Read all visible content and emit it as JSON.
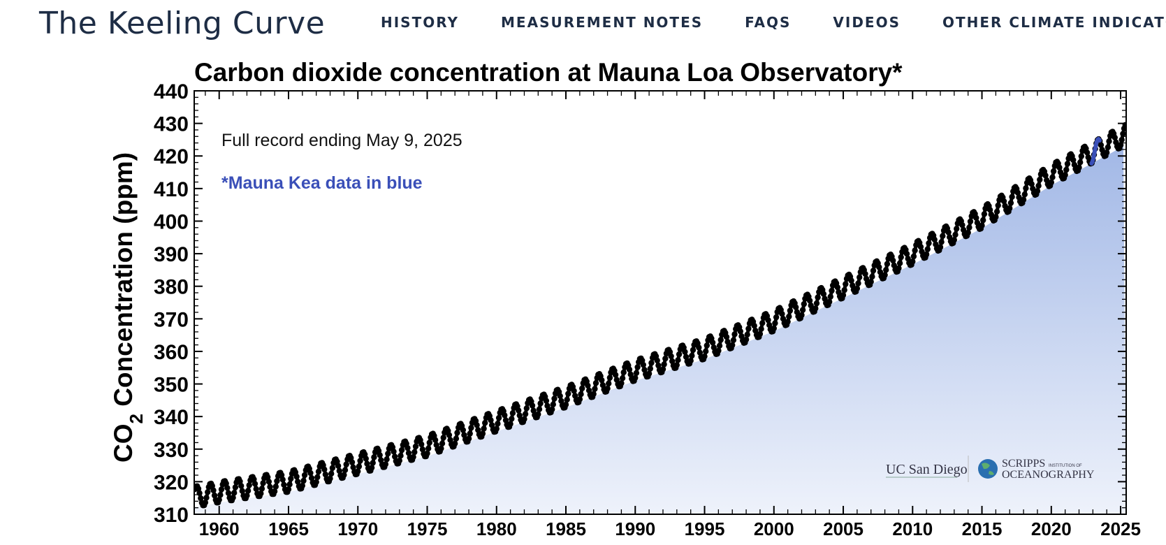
{
  "site": {
    "title": "The Keeling Curve"
  },
  "nav": {
    "items": [
      "HISTORY",
      "MEASUREMENT NOTES",
      "FAQS",
      "VIDEOS",
      "OTHER CLIMATE INDICATORS"
    ]
  },
  "chart_data": {
    "type": "scatter",
    "title": "Carbon dioxide concentration at Mauna Loa Observatory*",
    "ylabel_main": "CO",
    "ylabel_sub": "2",
    "ylabel_rest": " Concentration (ppm)",
    "xlabel": "",
    "xlim": [
      1958.2,
      2025.4
    ],
    "ylim": [
      310,
      440
    ],
    "xticks": [
      1960,
      1965,
      1970,
      1975,
      1980,
      1985,
      1990,
      1995,
      2000,
      2005,
      2010,
      2015,
      2020,
      2025
    ],
    "yticks": [
      310,
      320,
      330,
      340,
      350,
      360,
      370,
      380,
      390,
      400,
      410,
      420,
      430,
      440
    ],
    "annotations": {
      "record_note": "Full record ending May 9, 2025",
      "mauna_kea_note": "*Mauna Kea data in blue"
    },
    "logos": {
      "ucsd": "UC San Diego",
      "scripps_main": "SCRIPPS",
      "scripps_small": "INSTITUTION OF",
      "scripps_sub": "OCEANOGRAPHY"
    },
    "series": [
      {
        "name": "Mauna Loa",
        "color": "#000000",
        "anchor_years": [
          1958.5,
          1960,
          1965,
          1970,
          1975,
          1980,
          1985,
          1990,
          1995,
          2000,
          2005,
          2010,
          2015,
          2020,
          2025.35
        ],
        "anchor_trend_ppm": [
          315.5,
          316.8,
          320.0,
          325.5,
          331.0,
          338.6,
          346.0,
          354.2,
          360.8,
          369.4,
          379.6,
          389.9,
          401.0,
          414.2,
          426.5
        ],
        "seasonal_amplitude_ppm": 3.2
      },
      {
        "name": "Mauna Kea",
        "color": "#3a4fb8",
        "x_range": [
          2022.9,
          2023.5
        ]
      }
    ],
    "colors": {
      "fill_top": "#a2b8e6",
      "fill_bottom": "#eef2fb",
      "axis": "#000000",
      "note_blue": "#3a4fb8"
    }
  }
}
